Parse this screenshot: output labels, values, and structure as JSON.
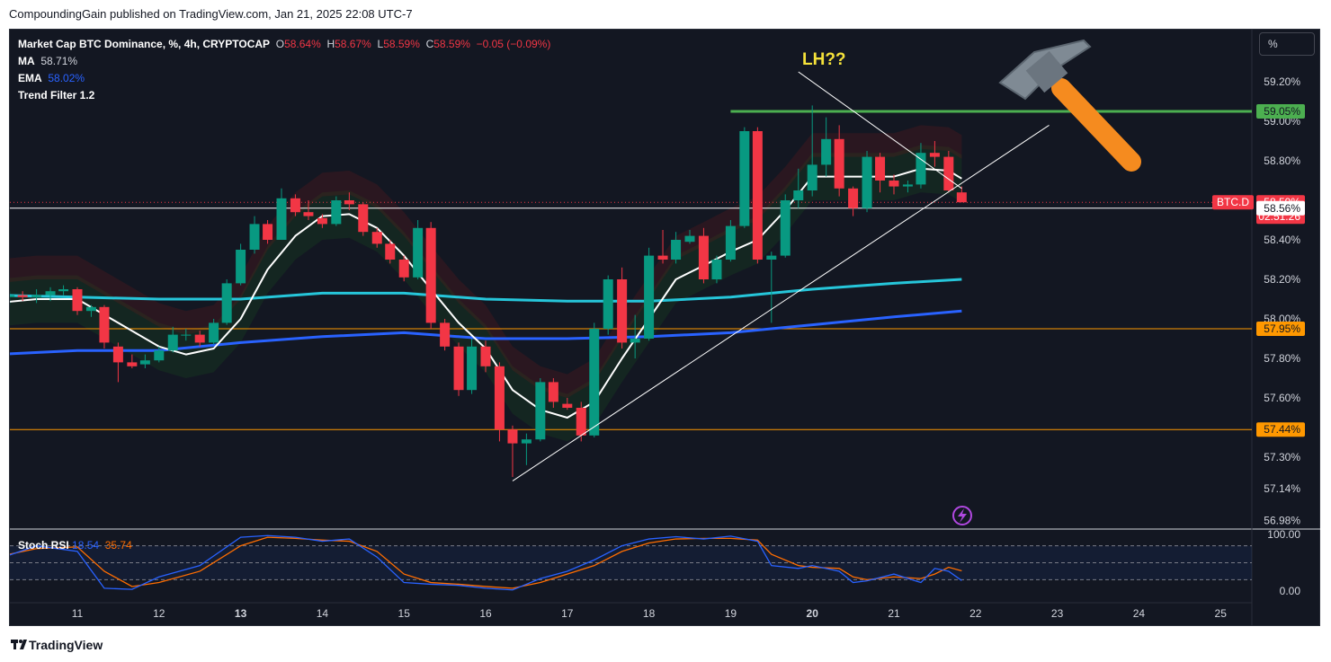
{
  "header": {
    "published": "CompoundingGain published on TradingView.com, Jan 21, 2025 22:08 UTC-7"
  },
  "legend": {
    "symbol": "Market Cap BTC Dominance, %, 4h, CRYPTOCAP",
    "o_label": "O",
    "o": "58.64%",
    "h_label": "H",
    "h": "58.67%",
    "l_label": "L",
    "l": "58.59%",
    "c_label": "C",
    "c": "58.59%",
    "change": "−0.05 (−0.09%)",
    "ma_label": "MA",
    "ma_value": "58.71%",
    "ema_label": "EMA",
    "ema_value": "58.02%",
    "trend_filter": "Trend Filter 1.2"
  },
  "toolbar": {
    "percent_button": "%"
  },
  "annotation": {
    "text": "LH??",
    "hammer_icon": "hammer-icon"
  },
  "rsi": {
    "label": "Stoch RSI",
    "k_value": "18.54",
    "d_value": "35.74"
  },
  "footer": {
    "brand": "TradingView",
    "logo_icon": "tradingview-logo-icon"
  },
  "colors": {
    "background": "#131722",
    "up": "#089981",
    "down": "#f23645",
    "ma": "#ffffff",
    "ema_fast": "#26c6da",
    "ema_slow": "#2962ff",
    "resistance": "#4caf50",
    "support": "#ff9800",
    "rsi_k": "#2962ff",
    "rsi_d": "#ff6d00"
  },
  "chart_data": {
    "type": "candlestick",
    "ylim": [
      56.98,
      59.3
    ],
    "y_ticks": [
      "59.20%",
      "59.00%",
      "58.80%",
      "58.40%",
      "58.20%",
      "58.00%",
      "57.80%",
      "57.60%",
      "57.30%",
      "57.14%",
      "56.98%"
    ],
    "x_ticks": [
      "11",
      "12",
      "13",
      "14",
      "15",
      "16",
      "17",
      "18",
      "19",
      "20",
      "21",
      "22",
      "23",
      "24",
      "25"
    ],
    "price_tags": [
      {
        "label": "59.05%",
        "value": 59.05,
        "color": "#4caf50",
        "text_color": "#131722"
      },
      {
        "label": "58.59%",
        "value": 58.59,
        "color": "#f23645",
        "text_color": "#ffffff",
        "countdown": "02:51:26",
        "ticker": "BTC.D"
      },
      {
        "label": "58.56%",
        "value": 58.56,
        "color": "#ffffff",
        "text_color": "#131722"
      },
      {
        "label": "57.95%",
        "value": 57.95,
        "color": "#ff9800",
        "text_color": "#131722"
      },
      {
        "label": "57.44%",
        "value": 57.44,
        "color": "#ff9800",
        "text_color": "#131722"
      }
    ],
    "horizontal_levels": [
      {
        "value": 59.05,
        "color": "#4caf50",
        "from_day": 19.0
      },
      {
        "value": 57.95,
        "color": "#ff9800"
      },
      {
        "value": 57.44,
        "color": "#ff9800"
      },
      {
        "value": 58.56,
        "color": "#ffffff"
      }
    ],
    "trendlines": [
      {
        "from": [
          16.33,
          57.18
        ],
        "to": [
          22.9,
          58.98
        ]
      },
      {
        "from": [
          19.83,
          59.25
        ],
        "to": [
          21.83,
          58.66
        ]
      }
    ],
    "candles": [
      [
        10.0,
        58.1,
        58.13,
        58.06,
        58.11
      ],
      [
        10.17,
        58.11,
        58.14,
        58.07,
        58.12
      ],
      [
        10.33,
        58.12,
        58.14,
        58.09,
        58.11
      ],
      [
        10.5,
        58.11,
        58.15,
        58.08,
        58.12
      ],
      [
        10.67,
        58.12,
        58.16,
        58.09,
        58.14
      ],
      [
        10.83,
        58.14,
        58.17,
        58.12,
        58.15
      ],
      [
        11.0,
        58.15,
        58.16,
        58.02,
        58.04
      ],
      [
        11.17,
        58.04,
        58.07,
        58.01,
        58.06
      ],
      [
        11.33,
        58.06,
        58.07,
        57.85,
        57.88
      ],
      [
        11.5,
        57.86,
        57.88,
        57.68,
        57.78
      ],
      [
        11.67,
        57.78,
        57.82,
        57.75,
        57.76
      ],
      [
        11.83,
        57.77,
        57.82,
        57.75,
        57.79
      ],
      [
        12.0,
        57.79,
        57.86,
        57.78,
        57.84
      ],
      [
        12.17,
        57.84,
        57.96,
        57.83,
        57.92
      ],
      [
        12.33,
        57.92,
        57.95,
        57.89,
        57.92
      ],
      [
        12.5,
        57.92,
        57.94,
        57.86,
        57.88
      ],
      [
        12.67,
        57.88,
        58.0,
        57.87,
        57.98
      ],
      [
        12.83,
        57.98,
        58.2,
        57.97,
        58.18
      ],
      [
        13.0,
        58.18,
        58.38,
        58.17,
        58.35
      ],
      [
        13.17,
        58.35,
        58.52,
        58.33,
        58.48
      ],
      [
        13.33,
        58.48,
        58.5,
        58.38,
        58.4
      ],
      [
        13.5,
        58.4,
        58.66,
        58.4,
        58.61
      ],
      [
        13.67,
        58.61,
        58.63,
        58.52,
        58.54
      ],
      [
        13.83,
        58.54,
        58.6,
        58.5,
        58.52
      ],
      [
        14.0,
        58.51,
        58.53,
        58.46,
        58.48
      ],
      [
        14.17,
        58.48,
        58.62,
        58.47,
        58.6
      ],
      [
        14.33,
        58.6,
        58.64,
        58.55,
        58.58
      ],
      [
        14.5,
        58.58,
        58.59,
        58.42,
        58.44
      ],
      [
        14.67,
        58.44,
        58.46,
        58.36,
        58.38
      ],
      [
        14.83,
        58.38,
        58.4,
        58.28,
        58.3
      ],
      [
        15.0,
        58.3,
        58.32,
        58.19,
        58.21
      ],
      [
        15.17,
        58.21,
        58.5,
        58.2,
        58.46
      ],
      [
        15.33,
        58.46,
        58.49,
        57.95,
        57.98
      ],
      [
        15.5,
        57.98,
        58.0,
        57.84,
        57.86
      ],
      [
        15.67,
        57.86,
        57.88,
        57.61,
        57.64
      ],
      [
        15.83,
        57.64,
        57.9,
        57.62,
        57.86
      ],
      [
        16.0,
        57.86,
        57.89,
        57.73,
        57.76
      ],
      [
        16.17,
        57.76,
        57.78,
        57.38,
        57.44
      ],
      [
        16.33,
        57.44,
        57.46,
        57.2,
        57.37
      ],
      [
        16.5,
        57.37,
        57.42,
        57.26,
        57.39
      ],
      [
        16.67,
        57.39,
        57.7,
        57.38,
        57.68
      ],
      [
        16.83,
        57.68,
        57.7,
        57.55,
        57.58
      ],
      [
        17.0,
        57.57,
        57.6,
        57.54,
        57.55
      ],
      [
        17.17,
        57.55,
        57.58,
        57.38,
        57.41
      ],
      [
        17.33,
        57.41,
        57.98,
        57.4,
        57.95
      ],
      [
        17.5,
        57.95,
        58.22,
        57.92,
        58.2
      ],
      [
        17.67,
        58.2,
        58.26,
        57.85,
        57.88
      ],
      [
        17.83,
        57.88,
        58.02,
        57.8,
        57.9
      ],
      [
        18.0,
        57.9,
        58.36,
        57.89,
        58.32
      ],
      [
        18.17,
        58.32,
        58.45,
        58.28,
        58.3
      ],
      [
        18.33,
        58.3,
        58.44,
        58.28,
        58.4
      ],
      [
        18.5,
        58.39,
        58.45,
        58.38,
        58.42
      ],
      [
        18.67,
        58.42,
        58.46,
        58.18,
        58.2
      ],
      [
        18.83,
        58.2,
        58.32,
        58.18,
        58.3
      ],
      [
        19.0,
        58.3,
        58.5,
        58.29,
        58.47
      ],
      [
        19.17,
        58.47,
        58.97,
        58.46,
        58.95
      ],
      [
        19.33,
        58.95,
        58.97,
        58.28,
        58.3
      ],
      [
        19.5,
        58.3,
        58.34,
        57.98,
        58.32
      ],
      [
        19.67,
        58.32,
        58.63,
        58.31,
        58.6
      ],
      [
        19.83,
        58.6,
        58.76,
        58.56,
        58.65
      ],
      [
        20.0,
        58.65,
        59.08,
        58.62,
        58.78
      ],
      [
        20.17,
        58.78,
        59.02,
        58.72,
        58.91
      ],
      [
        20.33,
        58.91,
        58.98,
        58.62,
        58.66
      ],
      [
        20.5,
        58.66,
        58.67,
        58.52,
        58.56
      ],
      [
        20.67,
        58.56,
        58.85,
        58.54,
        58.82
      ],
      [
        20.83,
        58.82,
        58.84,
        58.64,
        58.7
      ],
      [
        21.0,
        58.7,
        58.73,
        58.63,
        58.67
      ],
      [
        21.17,
        58.67,
        58.7,
        58.64,
        58.68
      ],
      [
        21.33,
        58.68,
        58.89,
        58.66,
        58.84
      ],
      [
        21.5,
        58.84,
        58.9,
        58.77,
        58.82
      ],
      [
        21.67,
        58.82,
        58.85,
        58.64,
        58.65
      ],
      [
        21.83,
        58.64,
        58.67,
        58.59,
        58.59
      ]
    ],
    "ma_line": [
      [
        10.0,
        58.08
      ],
      [
        10.5,
        58.1
      ],
      [
        11.0,
        58.1
      ],
      [
        11.5,
        57.98
      ],
      [
        12.0,
        57.86
      ],
      [
        12.33,
        57.82
      ],
      [
        12.67,
        57.85
      ],
      [
        13.0,
        58.0
      ],
      [
        13.33,
        58.25
      ],
      [
        13.67,
        58.42
      ],
      [
        14.0,
        58.52
      ],
      [
        14.33,
        58.53
      ],
      [
        14.67,
        58.46
      ],
      [
        15.0,
        58.32
      ],
      [
        15.33,
        58.15
      ],
      [
        15.67,
        57.98
      ],
      [
        16.0,
        57.85
      ],
      [
        16.33,
        57.64
      ],
      [
        16.67,
        57.54
      ],
      [
        17.0,
        57.5
      ],
      [
        17.33,
        57.58
      ],
      [
        17.67,
        57.8
      ],
      [
        18.0,
        58.0
      ],
      [
        18.33,
        58.2
      ],
      [
        18.67,
        58.27
      ],
      [
        19.0,
        58.34
      ],
      [
        19.33,
        58.4
      ],
      [
        19.67,
        58.55
      ],
      [
        20.0,
        58.72
      ],
      [
        20.33,
        58.72
      ],
      [
        20.67,
        58.72
      ],
      [
        21.0,
        58.72
      ],
      [
        21.33,
        58.76
      ],
      [
        21.67,
        58.75
      ],
      [
        21.83,
        58.71
      ]
    ],
    "ema_fast_line": [
      [
        10.0,
        58.12
      ],
      [
        11.0,
        58.11
      ],
      [
        12.0,
        58.1
      ],
      [
        13.0,
        58.1
      ],
      [
        14.0,
        58.13
      ],
      [
        15.0,
        58.13
      ],
      [
        16.0,
        58.1
      ],
      [
        17.0,
        58.09
      ],
      [
        18.0,
        58.09
      ],
      [
        19.0,
        58.11
      ],
      [
        20.0,
        58.15
      ],
      [
        21.0,
        58.18
      ],
      [
        21.83,
        58.2
      ]
    ],
    "ema_slow_line": [
      [
        10.0,
        57.82
      ],
      [
        11.0,
        57.84
      ],
      [
        12.0,
        57.84
      ],
      [
        13.0,
        57.88
      ],
      [
        14.0,
        57.91
      ],
      [
        15.0,
        57.93
      ],
      [
        16.0,
        57.9
      ],
      [
        17.0,
        57.9
      ],
      [
        18.0,
        57.91
      ],
      [
        19.0,
        57.93
      ],
      [
        20.0,
        57.97
      ],
      [
        21.0,
        58.01
      ],
      [
        21.83,
        58.04
      ]
    ],
    "rsi_ylim": [
      0,
      100
    ],
    "rsi_ticks": [
      "100.00",
      "0.00"
    ],
    "rsi_k": [
      [
        10.0,
        55
      ],
      [
        10.5,
        80
      ],
      [
        11.0,
        70
      ],
      [
        11.33,
        5
      ],
      [
        11.67,
        3
      ],
      [
        12.0,
        25
      ],
      [
        12.5,
        45
      ],
      [
        13.0,
        95
      ],
      [
        13.33,
        98
      ],
      [
        13.67,
        95
      ],
      [
        14.0,
        88
      ],
      [
        14.33,
        92
      ],
      [
        14.67,
        60
      ],
      [
        15.0,
        15
      ],
      [
        15.33,
        12
      ],
      [
        15.67,
        10
      ],
      [
        16.0,
        5
      ],
      [
        16.33,
        2
      ],
      [
        16.67,
        22
      ],
      [
        17.0,
        35
      ],
      [
        17.33,
        55
      ],
      [
        17.67,
        80
      ],
      [
        18.0,
        92
      ],
      [
        18.33,
        96
      ],
      [
        18.67,
        92
      ],
      [
        19.0,
        97
      ],
      [
        19.33,
        88
      ],
      [
        19.5,
        45
      ],
      [
        19.83,
        40
      ],
      [
        20.0,
        45
      ],
      [
        20.33,
        35
      ],
      [
        20.5,
        15
      ],
      [
        20.67,
        18
      ],
      [
        21.0,
        30
      ],
      [
        21.33,
        15
      ],
      [
        21.5,
        40
      ],
      [
        21.67,
        35
      ],
      [
        21.83,
        18.54
      ]
    ],
    "rsi_d": [
      [
        10.0,
        60
      ],
      [
        10.5,
        75
      ],
      [
        11.0,
        78
      ],
      [
        11.33,
        35
      ],
      [
        11.67,
        8
      ],
      [
        12.0,
        15
      ],
      [
        12.5,
        35
      ],
      [
        13.0,
        80
      ],
      [
        13.33,
        95
      ],
      [
        13.67,
        93
      ],
      [
        14.0,
        90
      ],
      [
        14.33,
        88
      ],
      [
        14.67,
        70
      ],
      [
        15.0,
        30
      ],
      [
        15.33,
        15
      ],
      [
        15.67,
        12
      ],
      [
        16.0,
        8
      ],
      [
        16.33,
        5
      ],
      [
        16.67,
        15
      ],
      [
        17.0,
        30
      ],
      [
        17.33,
        45
      ],
      [
        17.67,
        70
      ],
      [
        18.0,
        85
      ],
      [
        18.33,
        92
      ],
      [
        18.67,
        93
      ],
      [
        19.0,
        93
      ],
      [
        19.33,
        90
      ],
      [
        19.5,
        65
      ],
      [
        19.83,
        45
      ],
      [
        20.0,
        42
      ],
      [
        20.33,
        40
      ],
      [
        20.5,
        25
      ],
      [
        20.67,
        20
      ],
      [
        21.0,
        25
      ],
      [
        21.33,
        22
      ],
      [
        21.5,
        30
      ],
      [
        21.67,
        42
      ],
      [
        21.83,
        35.74
      ]
    ]
  }
}
